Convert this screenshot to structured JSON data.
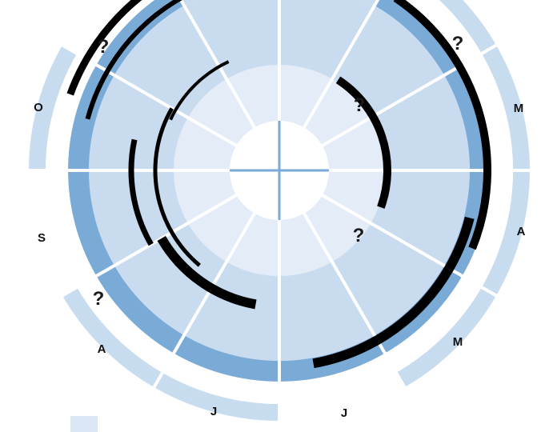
{
  "colors": {
    "background": "#ffffff",
    "ring_light": "#e3ecf7",
    "ring_mid": "#c9dbef",
    "ring_dark": "#7aaad6",
    "outer_light": "#c8dcf0",
    "outer_blank": "#ffffff",
    "divider": "#ffffff",
    "bar": "#000000",
    "legend_swatch": "#dbe7f4"
  },
  "month_labels": [
    {
      "id": "o",
      "text": "O"
    },
    {
      "id": "s",
      "text": "S"
    },
    {
      "id": "a1",
      "text": "A"
    },
    {
      "id": "j1",
      "text": "J"
    },
    {
      "id": "j2",
      "text": "J"
    },
    {
      "id": "m1",
      "text": "M"
    },
    {
      "id": "a2",
      "text": "A"
    },
    {
      "id": "m2",
      "text": "M"
    }
  ],
  "question_marks": [
    {
      "id": "q1",
      "text": "?"
    },
    {
      "id": "q2",
      "text": "?"
    },
    {
      "id": "q3",
      "text": "?"
    },
    {
      "id": "q4",
      "text": "?"
    },
    {
      "id": "q5",
      "text": "?"
    }
  ]
}
